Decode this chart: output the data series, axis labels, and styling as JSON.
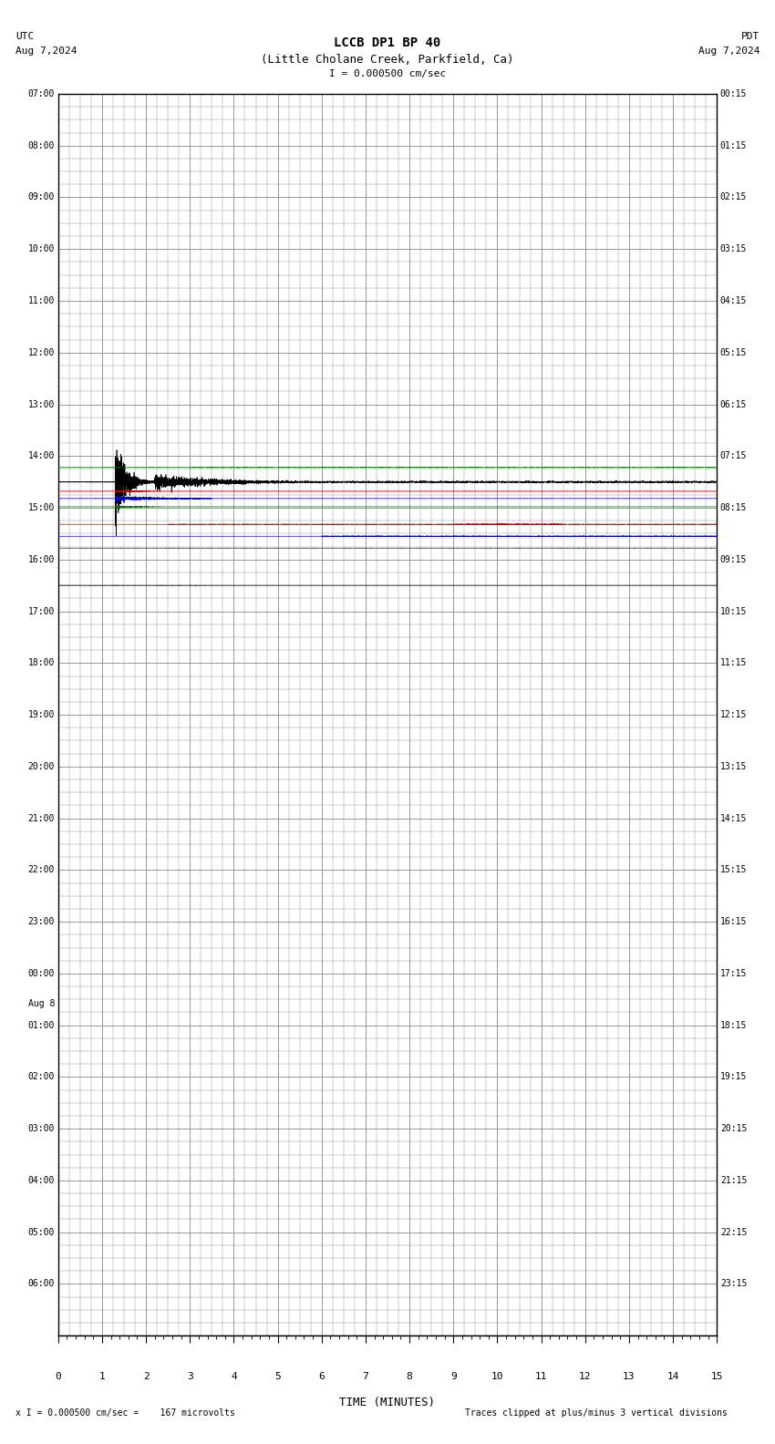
{
  "title_line1": "LCCB DP1 BP 40",
  "title_line2": "(Little Cholane Creek, Parkfield, Ca)",
  "utc_label": "UTC",
  "utc_date": "Aug 7,2024",
  "pdt_label": "PDT",
  "pdt_date": "Aug 7,2024",
  "scale_text": "= 0.000500 cm/sec",
  "bottom_left_text": "= 0.000500 cm/sec =    167 microvolts",
  "bottom_right_text": "Traces clipped at plus/minus 3 vertical divisions",
  "xlabel": "TIME (MINUTES)",
  "xmin": 0,
  "xmax": 15,
  "num_rows": 24,
  "left_times": [
    "07:00",
    "08:00",
    "09:00",
    "10:00",
    "11:00",
    "12:00",
    "13:00",
    "14:00",
    "15:00",
    "16:00",
    "17:00",
    "18:00",
    "19:00",
    "20:00",
    "21:00",
    "22:00",
    "23:00",
    "00:00",
    "01:00",
    "02:00",
    "03:00",
    "04:00",
    "05:00",
    "06:00"
  ],
  "right_times": [
    "00:15",
    "01:15",
    "02:15",
    "03:15",
    "04:15",
    "05:15",
    "06:15",
    "07:15",
    "08:15",
    "09:15",
    "10:15",
    "11:15",
    "12:15",
    "13:15",
    "14:15",
    "15:15",
    "16:15",
    "17:15",
    "18:15",
    "19:15",
    "20:15",
    "21:15",
    "22:15",
    "23:15"
  ],
  "aug8_row": 17,
  "aug8_label": "Aug 8",
  "bg_color": "#ffffff",
  "grid_color": "#888888",
  "text_color": "#000000",
  "seismic_row": 7,
  "seismic_colors": [
    "#000000",
    "#ff0000",
    "#0000ff",
    "#008000"
  ],
  "extra_row1": 8,
  "extra_row2": 9
}
